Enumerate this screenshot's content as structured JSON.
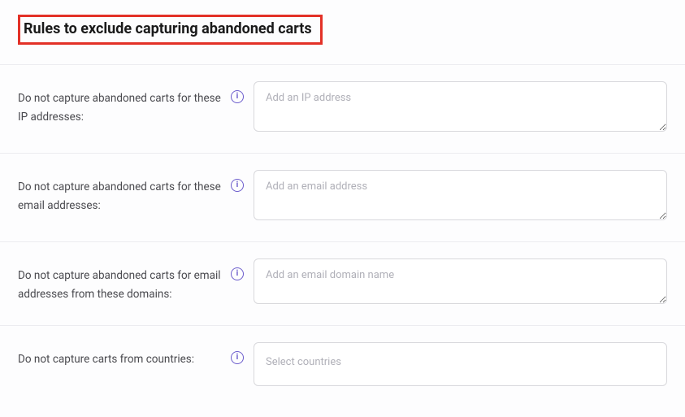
{
  "colors": {
    "highlight_border": "#e33127",
    "info_icon": "#6b5ccc",
    "divider": "#ececf0",
    "input_border": "#d8d8dc",
    "placeholder": "#b0b0b8",
    "label_text": "#4a4a4f",
    "background": "#fdfdfe"
  },
  "header": {
    "title": "Rules to exclude capturing abandoned carts"
  },
  "rows": [
    {
      "label": "Do not capture abandoned carts for these IP addresses:",
      "placeholder": "Add an IP address",
      "type": "textarea"
    },
    {
      "label": "Do not capture abandoned carts for these email addresses:",
      "placeholder": "Add an email address",
      "type": "textarea"
    },
    {
      "label": "Do not capture abandoned carts for email addresses from these domains:",
      "placeholder": "Add an email domain name",
      "type": "textarea"
    },
    {
      "label": "Do not capture carts from countries:",
      "placeholder": "Select countries",
      "type": "select"
    }
  ]
}
